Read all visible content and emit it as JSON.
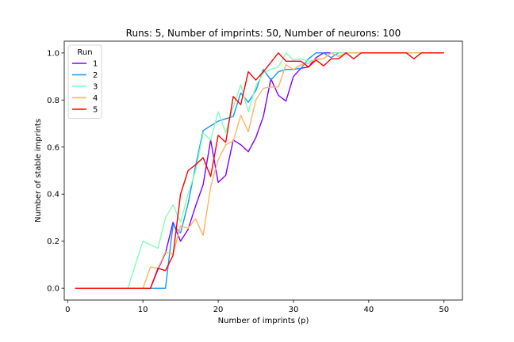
{
  "chart_data": {
    "type": "line",
    "title": "Runs: 5, Number of imprints: 50, Number of neurons: 100",
    "xlabel": "Number of imprints (p)",
    "ylabel": "Number of stable imprints",
    "xlim": [
      -0.45,
      52.45
    ],
    "ylim": [
      -0.05,
      1.05
    ],
    "xticks": [
      0,
      10,
      20,
      30,
      40,
      50
    ],
    "yticks": [
      0.0,
      0.2,
      0.4,
      0.6,
      0.8,
      1.0
    ],
    "ytick_labels": [
      "0.0",
      "0.2",
      "0.4",
      "0.6",
      "0.8",
      "1.0"
    ],
    "grid": false,
    "legend": {
      "title": "Run",
      "placement": "upper-left"
    },
    "x": [
      1,
      2,
      3,
      4,
      5,
      6,
      7,
      8,
      9,
      10,
      11,
      12,
      13,
      14,
      15,
      16,
      17,
      18,
      19,
      20,
      21,
      22,
      23,
      24,
      25,
      26,
      27,
      28,
      29,
      30,
      31,
      32,
      33,
      34,
      35,
      36,
      37,
      38,
      39,
      40,
      41,
      42,
      43,
      44,
      45,
      46,
      47,
      48,
      49,
      50
    ],
    "series": [
      {
        "name": "1",
        "color": "#8000ff",
        "values": [
          0,
          0,
          0,
          0,
          0,
          0,
          0,
          0,
          0,
          0,
          0,
          0.08,
          0.15,
          0.28,
          0.2,
          0.25,
          0.35,
          0.44,
          0.63,
          0.45,
          0.48,
          0.63,
          0.61,
          0.58,
          0.64,
          0.73,
          0.89,
          0.82,
          0.795,
          0.9,
          0.935,
          0.94,
          0.98,
          1,
          1,
          1,
          1,
          1,
          1,
          1,
          1,
          1,
          1,
          1,
          1,
          1,
          1,
          1,
          1,
          1
        ]
      },
      {
        "name": "2",
        "color": "#1996f3",
        "values": [
          0,
          0,
          0,
          0,
          0,
          0,
          0,
          0,
          0,
          0,
          0,
          0,
          0,
          0.27,
          0.235,
          0.36,
          0.52,
          0.67,
          0.69,
          0.71,
          0.72,
          0.73,
          0.83,
          0.79,
          0.84,
          0.93,
          0.885,
          0.92,
          0.93,
          0.93,
          0.935,
          0.975,
          1,
          1,
          0.98,
          1,
          1,
          1,
          1,
          1,
          1,
          1,
          1,
          1,
          1,
          1,
          1,
          1,
          1,
          1
        ]
      },
      {
        "name": "3",
        "color": "#80ffb4",
        "values": [
          0,
          0,
          0,
          0,
          0,
          0,
          0,
          0,
          0.1,
          0.2,
          0.185,
          0.17,
          0.3,
          0.355,
          0.28,
          0.4,
          0.5,
          0.66,
          0.63,
          0.75,
          0.66,
          0.77,
          0.865,
          0.75,
          0.86,
          0.915,
          0.93,
          0.94,
          1,
          0.97,
          0.975,
          0.965,
          0.97,
          0.975,
          1,
          1,
          1,
          1,
          1,
          1,
          1,
          1,
          1,
          1,
          1,
          1,
          1,
          1,
          1,
          1
        ]
      },
      {
        "name": "4",
        "color": "#ffb360",
        "values": [
          0,
          0,
          0,
          0,
          0,
          0,
          0,
          0,
          0,
          0,
          0.09,
          0.085,
          0.155,
          0.145,
          0.265,
          0.255,
          0.295,
          0.225,
          0.43,
          0.545,
          0.61,
          0.625,
          0.735,
          0.665,
          0.8,
          0.85,
          0.855,
          0.855,
          0.95,
          0.93,
          0.95,
          0.955,
          0.975,
          0.975,
          1,
          0.985,
          1,
          1,
          1,
          1,
          1,
          1,
          1,
          1,
          1,
          1,
          1,
          1,
          1,
          1
        ]
      },
      {
        "name": "5",
        "color": "#ff0000",
        "values": [
          0,
          0,
          0,
          0,
          0,
          0,
          0,
          0,
          0,
          0,
          0,
          0.085,
          0.075,
          0.14,
          0.4,
          0.5,
          0.525,
          0.555,
          0.475,
          0.65,
          0.62,
          0.815,
          0.78,
          0.92,
          0.885,
          0.92,
          0.96,
          1,
          0.965,
          0.965,
          0.965,
          0.94,
          0.97,
          0.945,
          0.975,
          0.975,
          1,
          0.975,
          1,
          1,
          1,
          1,
          1,
          1,
          1,
          0.975,
          1,
          1,
          1,
          1
        ]
      }
    ]
  }
}
